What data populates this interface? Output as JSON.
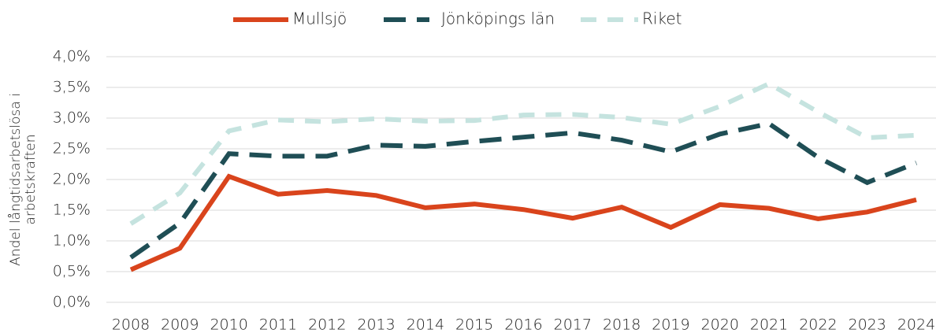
{
  "chart_data": {
    "type": "line",
    "ylabel": "Andel långtidsarbetslösa i arbetskraften",
    "categories": [
      "2008",
      "2009",
      "2010",
      "2011",
      "2012",
      "2013",
      "2014",
      "2015",
      "2016",
      "2017",
      "2018",
      "2019",
      "2020",
      "2021",
      "2022",
      "2023",
      "2024"
    ],
    "series": [
      {
        "name": "Mullsjö",
        "color": "#d9441c",
        "dash": "solid",
        "values": [
          0.53,
          0.88,
          2.05,
          1.76,
          1.82,
          1.74,
          1.54,
          1.6,
          1.51,
          1.37,
          1.55,
          1.22,
          1.59,
          1.53,
          1.36,
          1.47,
          1.67
        ]
      },
      {
        "name": "Jönköpings län",
        "color": "#1f4e55",
        "dash": "long",
        "values": [
          0.73,
          1.29,
          2.42,
          2.38,
          2.38,
          2.56,
          2.54,
          2.62,
          2.69,
          2.76,
          2.64,
          2.45,
          2.74,
          2.91,
          2.36,
          1.95,
          2.27
        ]
      },
      {
        "name": "Riket",
        "color": "#c5e3df",
        "dash": "short",
        "values": [
          1.28,
          1.78,
          2.79,
          2.97,
          2.94,
          2.99,
          2.95,
          2.96,
          3.05,
          3.06,
          3.01,
          2.9,
          3.19,
          3.56,
          3.1,
          2.68,
          2.72
        ]
      }
    ],
    "ylim": [
      0,
      4
    ],
    "yticks": [
      {
        "value": 0,
        "label": "0,0%"
      },
      {
        "value": 0.5,
        "label": "0,5%"
      },
      {
        "value": 1,
        "label": "1,0%"
      },
      {
        "value": 1.5,
        "label": "1,5%"
      },
      {
        "value": 2,
        "label": "2,0%"
      },
      {
        "value": 2.5,
        "label": "2,5%"
      },
      {
        "value": 3,
        "label": "3,0%"
      },
      {
        "value": 3.5,
        "label": "3,5%"
      },
      {
        "value": 4,
        "label": "4,0%"
      }
    ],
    "grid": true,
    "legend": "top"
  }
}
